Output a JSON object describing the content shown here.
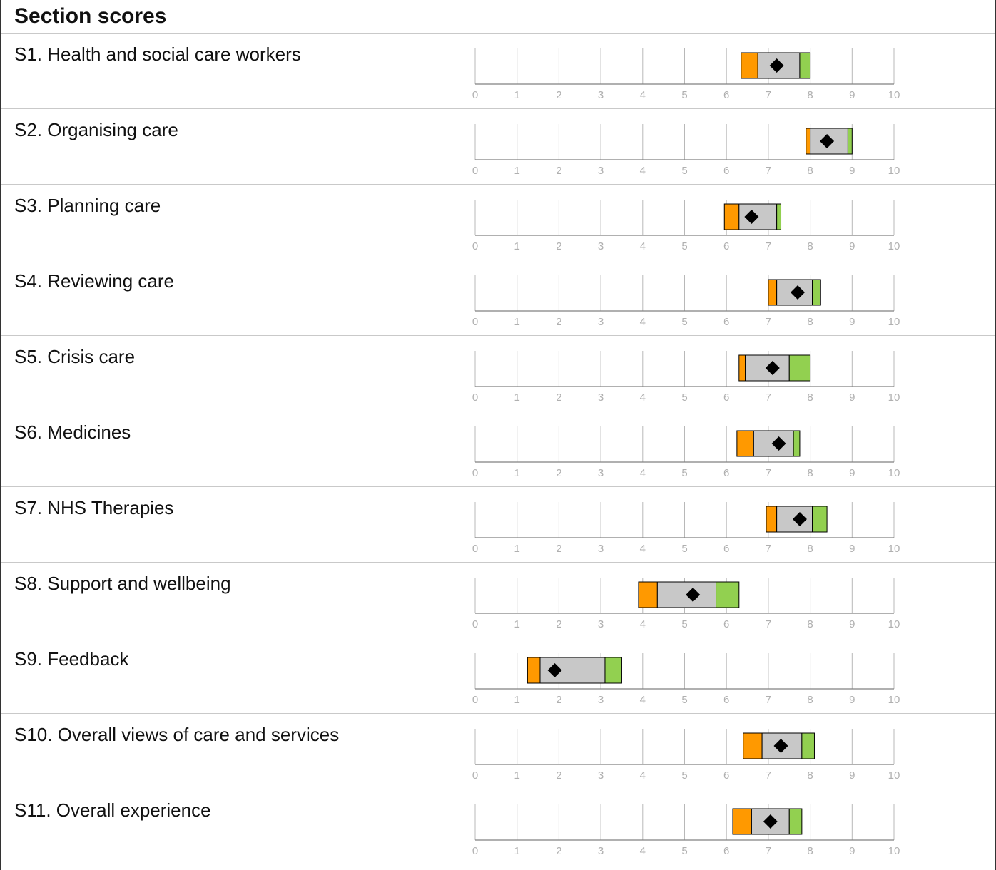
{
  "title": "Section scores",
  "colors": {
    "lower": "#ff9900",
    "middle": "#c8c8c8",
    "upper": "#92d050",
    "marker": "#000000",
    "axis": "#808080",
    "tick": "#b8b8b8"
  },
  "chart_data": {
    "type": "range-band",
    "xlim": [
      0,
      10
    ],
    "xticks": [
      "0",
      "1",
      "2",
      "3",
      "4",
      "5",
      "6",
      "7",
      "8",
      "9",
      "10"
    ],
    "bands": [
      "lower",
      "middle",
      "upper"
    ],
    "rows": [
      {
        "label": "S1. Health and social care workers",
        "min": 6.35,
        "lower_q": 6.75,
        "upper_q": 7.75,
        "max": 8.0,
        "score": 7.2
      },
      {
        "label": "S2. Organising care",
        "min": 7.9,
        "lower_q": 8.0,
        "upper_q": 8.9,
        "max": 9.0,
        "score": 8.4
      },
      {
        "label": "S3. Planning care",
        "min": 5.95,
        "lower_q": 6.3,
        "upper_q": 7.2,
        "max": 7.3,
        "score": 6.6
      },
      {
        "label": "S4. Reviewing care",
        "min": 7.0,
        "lower_q": 7.2,
        "upper_q": 8.05,
        "max": 8.25,
        "score": 7.7
      },
      {
        "label": "S5. Crisis care",
        "min": 6.3,
        "lower_q": 6.45,
        "upper_q": 7.5,
        "max": 8.0,
        "score": 7.1
      },
      {
        "label": "S6. Medicines",
        "min": 6.25,
        "lower_q": 6.65,
        "upper_q": 7.6,
        "max": 7.75,
        "score": 7.25
      },
      {
        "label": "S7. NHS Therapies",
        "min": 6.95,
        "lower_q": 7.2,
        "upper_q": 8.05,
        "max": 8.4,
        "score": 7.75
      },
      {
        "label": "S8. Support and wellbeing",
        "min": 3.9,
        "lower_q": 4.35,
        "upper_q": 5.75,
        "max": 6.3,
        "score": 5.2
      },
      {
        "label": "S9. Feedback",
        "min": 1.25,
        "lower_q": 1.55,
        "upper_q": 3.1,
        "max": 3.5,
        "score": 1.9
      },
      {
        "label": "S10. Overall views of care and services",
        "min": 6.4,
        "lower_q": 6.85,
        "upper_q": 7.8,
        "max": 8.1,
        "score": 7.3
      },
      {
        "label": "S11. Overall experience",
        "min": 6.15,
        "lower_q": 6.6,
        "upper_q": 7.5,
        "max": 7.8,
        "score": 7.05
      }
    ]
  }
}
